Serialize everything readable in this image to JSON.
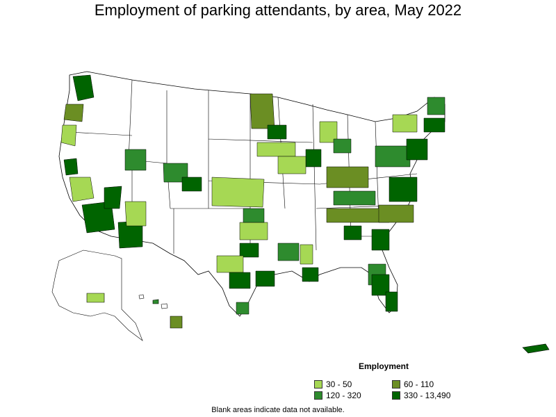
{
  "title": "Employment of parking attendants, by area, May 2022",
  "legend": {
    "title": "Employment",
    "items": [
      {
        "label": "30 - 50",
        "color": "#a6d854"
      },
      {
        "label": "60 - 110",
        "color": "#6b8e23"
      },
      {
        "label": "120 - 320",
        "color": "#2e8b2e"
      },
      {
        "label": "330 - 13,490",
        "color": "#006400"
      }
    ]
  },
  "note": "Blank areas indicate data not available."
}
